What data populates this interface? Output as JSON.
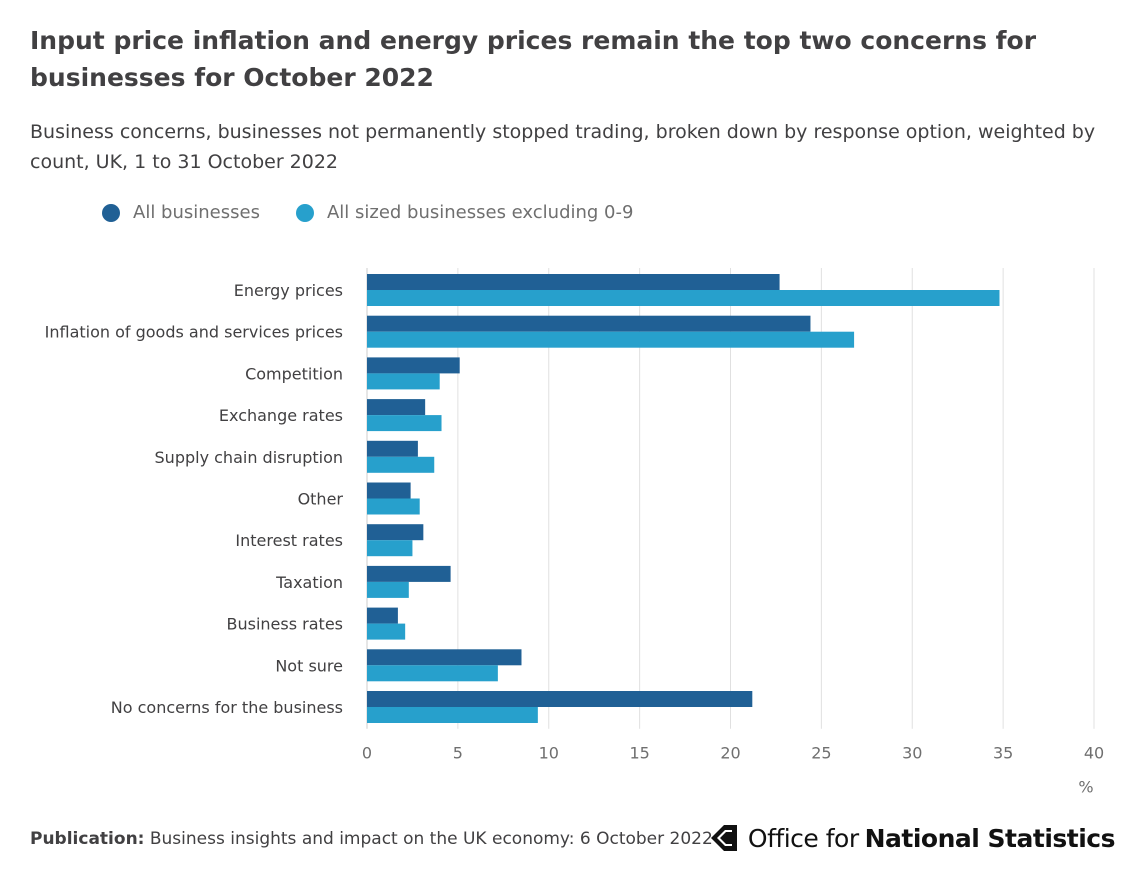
{
  "title": "Input price inflation and energy prices remain the top two concerns for businesses for October 2022",
  "subtitle": "Business concerns, businesses not permanently stopped trading, broken down by response option, weighted by count, UK, 1 to 31 October 2022",
  "colors": {
    "series_1": "#206095",
    "series_2": "#27a0cc",
    "gridline": "#e0e0e0",
    "axis_text": "#6f6f6f"
  },
  "chart_data": {
    "type": "bar",
    "orientation": "horizontal",
    "categories": [
      "Energy prices",
      "Inflation of goods and services prices",
      "Competition",
      "Exchange rates",
      "Supply chain disruption",
      "Other",
      "Interest rates",
      "Taxation",
      "Business rates",
      "Not sure",
      "No concerns for the business"
    ],
    "series": [
      {
        "name": "All businesses",
        "values": [
          22.7,
          24.4,
          5.1,
          3.2,
          2.8,
          2.4,
          3.1,
          4.6,
          1.7,
          8.5,
          21.2
        ]
      },
      {
        "name": "All sized businesses excluding 0-9",
        "values": [
          34.8,
          26.8,
          4.0,
          4.1,
          3.7,
          2.9,
          2.5,
          2.3,
          2.1,
          7.2,
          9.4
        ]
      }
    ],
    "xlim": [
      0,
      40
    ],
    "xticks": [
      "0",
      "5",
      "10",
      "15",
      "20",
      "25",
      "30",
      "35",
      "40"
    ],
    "xunit": "%",
    "legend_position": "top-left",
    "grid": true
  },
  "footer": {
    "publication_label": "Publication:",
    "publication_text": "Business insights and impact on the UK economy: 6 October 2022"
  },
  "logo": {
    "text_regular": "Office for",
    "text_bold": "National Statistics",
    "icon": "ons-logo-icon"
  }
}
